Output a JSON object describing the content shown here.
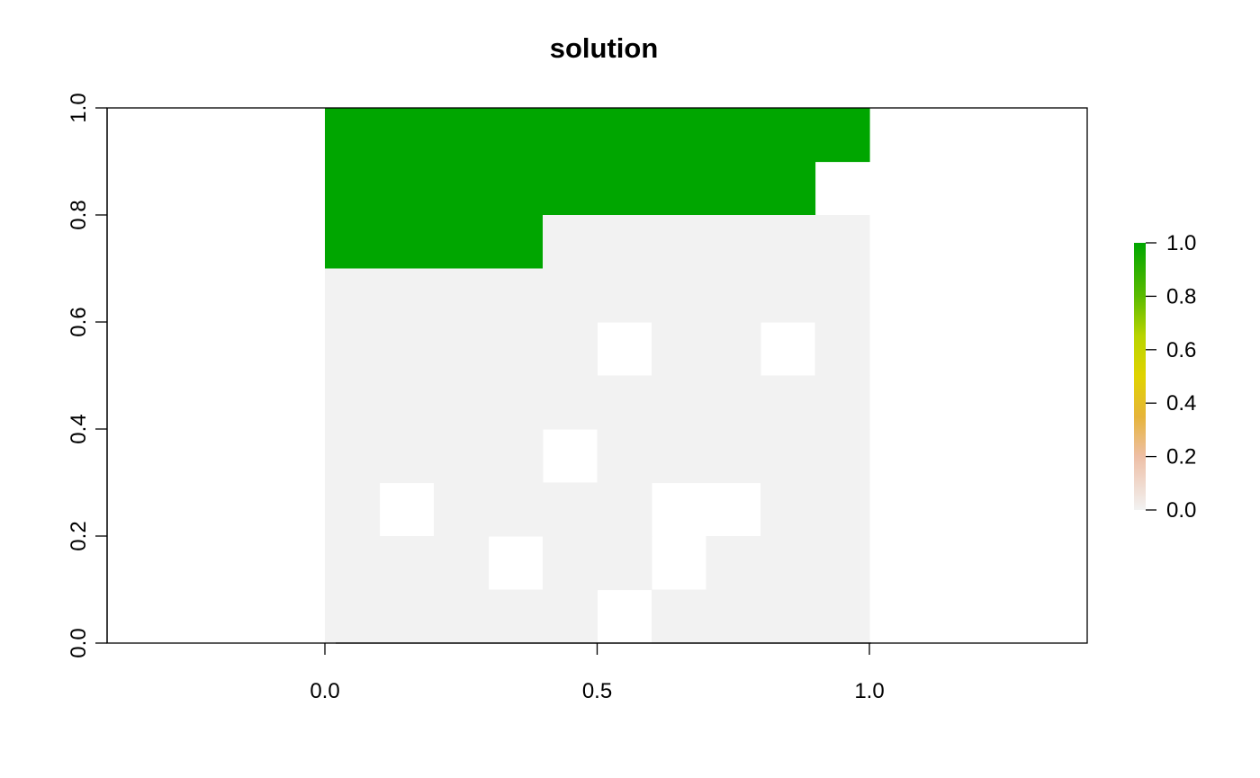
{
  "chart_data": {
    "type": "heatmap",
    "title": "solution",
    "xlabel": "",
    "ylabel": "",
    "xlim": [
      -0.4,
      1.4
    ],
    "ylim": [
      0.0,
      1.0
    ],
    "x_ticks": [
      "0.0",
      "0.5",
      "1.0"
    ],
    "y_ticks": [
      "0.0",
      "0.2",
      "0.4",
      "0.6",
      "0.8",
      "1.0"
    ],
    "grid": false,
    "raster": {
      "x_extent": [
        0.0,
        1.0
      ],
      "y_extent": [
        0.0,
        1.0
      ],
      "ncol": 10,
      "nrow": 10,
      "row_order": "top-to-bottom",
      "values": [
        [
          1,
          1,
          1,
          1,
          1,
          1,
          1,
          1,
          1,
          1
        ],
        [
          1,
          1,
          1,
          1,
          1,
          1,
          1,
          1,
          1,
          null
        ],
        [
          1,
          1,
          1,
          1,
          0,
          0,
          0,
          0,
          0,
          0
        ],
        [
          0,
          0,
          0,
          0,
          0,
          0,
          0,
          0,
          0,
          0
        ],
        [
          0,
          0,
          0,
          0,
          0,
          null,
          0,
          0,
          null,
          0
        ],
        [
          0,
          0,
          0,
          0,
          0,
          0,
          0,
          0,
          0,
          0
        ],
        [
          0,
          0,
          0,
          0,
          null,
          0,
          0,
          0,
          0,
          0
        ],
        [
          0,
          null,
          0,
          0,
          0,
          0,
          null,
          null,
          0,
          0
        ],
        [
          0,
          0,
          0,
          null,
          0,
          0,
          null,
          0,
          0,
          0
        ],
        [
          0,
          0,
          0,
          0,
          0,
          null,
          0,
          0,
          0,
          0
        ]
      ]
    },
    "legend": {
      "placement": "right",
      "range": [
        0.0,
        1.0
      ],
      "ticks": [
        "0.0",
        "0.2",
        "0.4",
        "0.6",
        "0.8",
        "1.0"
      ],
      "color_stops": [
        {
          "value": 0.0,
          "color": "#f2f2f2"
        },
        {
          "value": 0.2,
          "color": "#eebfa6"
        },
        {
          "value": 0.35,
          "color": "#e6b43a"
        },
        {
          "value": 0.5,
          "color": "#e0d300"
        },
        {
          "value": 0.65,
          "color": "#b9d400"
        },
        {
          "value": 0.8,
          "color": "#5bbb00"
        },
        {
          "value": 1.0,
          "color": "#00a600"
        }
      ]
    }
  }
}
